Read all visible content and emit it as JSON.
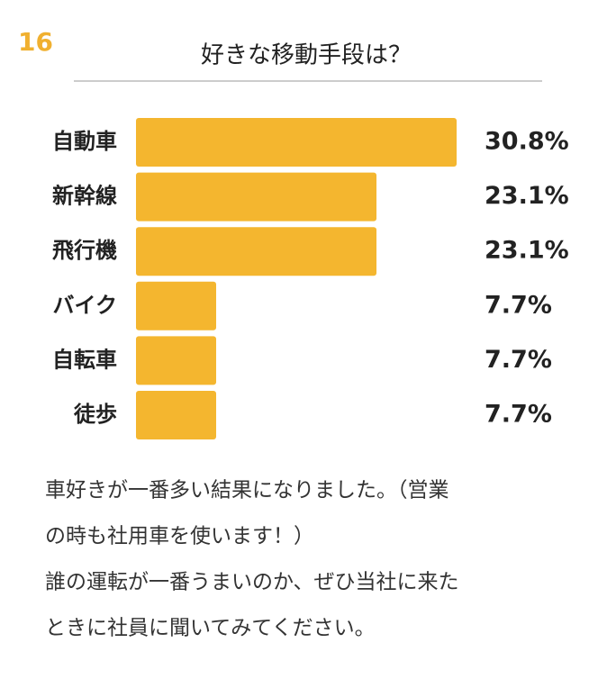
{
  "badge": "16",
  "chart_data": {
    "type": "bar",
    "orientation": "horizontal",
    "title": "好きな移動手段は？",
    "categories": [
      "自動車",
      "新幹線",
      "飛行機",
      "バイク",
      "自転車",
      "徒歩"
    ],
    "values": [
      30.8,
      23.1,
      23.1,
      7.7,
      7.7,
      7.7
    ],
    "value_labels": [
      "30.8%",
      "23.1%",
      "23.1%",
      "7.7%",
      "7.7%",
      "7.7%"
    ],
    "color": "#f4b62f"
  },
  "comment": [
    "車好きが一番多い結果になりました。（営業",
    "の時も社用車を使います！）",
    "誰の運転が一番うまいのか、ぜひ当社に来た",
    "ときに社員に聞いてみてください。"
  ]
}
